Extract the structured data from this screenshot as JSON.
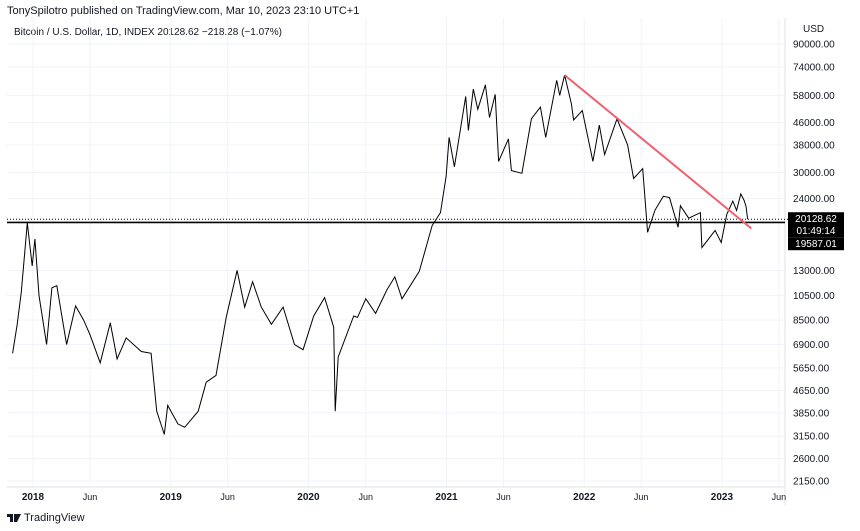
{
  "header": {
    "publisher_line": "TonySpilotro published on TradingView.com, Mar 10, 2023 23:10 UTC+1",
    "symbol_line": "Bitcoin / U.S. Dollar, 1D, INDEX  20128.62  −218.28 (−1.07%)"
  },
  "footer": {
    "brand": "TradingView",
    "logo_icon": "tradingview-logo-icon"
  },
  "colors": {
    "price": "#000000",
    "trendline": "#f0606e",
    "support": "#000000",
    "label_bg": "#000000",
    "grid": "#f0f3fa"
  },
  "chart_data": {
    "type": "line",
    "title": "Bitcoin / U.S. Dollar, 1D, INDEX",
    "y_unit_label": "USD",
    "y_scale": "log",
    "ylim": [
      1950,
      100000
    ],
    "xlim": [
      "2017-11-08",
      "2023-07-20"
    ],
    "grid": true,
    "y_ticks": [
      "90000.00",
      "74000.00",
      "58000.00",
      "46000.00",
      "38000.00",
      "30000.00",
      "24000.00",
      "13000.00",
      "10500.00",
      "8500.00",
      "6900.00",
      "5650.00",
      "4650.00",
      "3850.00",
      "3150.00",
      "2600.00",
      "2150.00"
    ],
    "x_ticks": [
      {
        "label": "2018",
        "date": "2018-01-01",
        "year": true
      },
      {
        "label": "Jun",
        "date": "2018-06-01"
      },
      {
        "label": "2019",
        "date": "2019-01-01",
        "year": true
      },
      {
        "label": "Jun",
        "date": "2019-06-01"
      },
      {
        "label": "2020",
        "date": "2020-01-01",
        "year": true
      },
      {
        "label": "Jun",
        "date": "2020-06-01"
      },
      {
        "label": "2021",
        "date": "2021-01-01",
        "year": true
      },
      {
        "label": "Jun",
        "date": "2021-06-01"
      },
      {
        "label": "2022",
        "date": "2022-01-01",
        "year": true
      },
      {
        "label": "Jun",
        "date": "2022-06-01"
      },
      {
        "label": "2023",
        "date": "2023-01-01",
        "year": true
      },
      {
        "label": "Jun",
        "date": "2023-06-01"
      }
    ],
    "series": [
      {
        "points": [
          [
            "2017-11-08",
            6400
          ],
          [
            "2017-11-20",
            8200
          ],
          [
            "2017-12-01",
            10800
          ],
          [
            "2017-12-17",
            19500
          ],
          [
            "2017-12-30",
            13500
          ],
          [
            "2018-01-06",
            17000
          ],
          [
            "2018-01-17",
            10500
          ],
          [
            "2018-02-06",
            6900
          ],
          [
            "2018-02-20",
            11200
          ],
          [
            "2018-03-05",
            11400
          ],
          [
            "2018-03-31",
            6900
          ],
          [
            "2018-04-24",
            9600
          ],
          [
            "2018-05-15",
            8500
          ],
          [
            "2018-06-01",
            7500
          ],
          [
            "2018-06-28",
            5900
          ],
          [
            "2018-07-25",
            8300
          ],
          [
            "2018-08-12",
            6100
          ],
          [
            "2018-09-05",
            7300
          ],
          [
            "2018-10-15",
            6500
          ],
          [
            "2018-11-10",
            6400
          ],
          [
            "2018-11-25",
            3900
          ],
          [
            "2018-12-15",
            3200
          ],
          [
            "2018-12-24",
            4100
          ],
          [
            "2019-01-20",
            3500
          ],
          [
            "2019-02-07",
            3400
          ],
          [
            "2019-03-15",
            3900
          ],
          [
            "2019-04-05",
            5000
          ],
          [
            "2019-05-01",
            5300
          ],
          [
            "2019-05-28",
            8700
          ],
          [
            "2019-06-26",
            13000
          ],
          [
            "2019-07-16",
            9500
          ],
          [
            "2019-08-06",
            11800
          ],
          [
            "2019-08-29",
            9500
          ],
          [
            "2019-09-25",
            8200
          ],
          [
            "2019-10-26",
            9500
          ],
          [
            "2019-11-25",
            6900
          ],
          [
            "2019-12-18",
            6600
          ],
          [
            "2020-01-15",
            8800
          ],
          [
            "2020-02-13",
            10300
          ],
          [
            "2020-03-08",
            8000
          ],
          [
            "2020-03-12",
            3900
          ],
          [
            "2020-03-20",
            6200
          ],
          [
            "2020-04-30",
            8800
          ],
          [
            "2020-05-10",
            8700
          ],
          [
            "2020-06-01",
            10200
          ],
          [
            "2020-06-27",
            9000
          ],
          [
            "2020-07-27",
            11000
          ],
          [
            "2020-08-17",
            12300
          ],
          [
            "2020-09-05",
            10200
          ],
          [
            "2020-10-21",
            12900
          ],
          [
            "2020-11-24",
            19100
          ],
          [
            "2020-12-16",
            21300
          ],
          [
            "2020-12-31",
            29000
          ],
          [
            "2021-01-08",
            40500
          ],
          [
            "2021-01-22",
            31500
          ],
          [
            "2021-02-21",
            57500
          ],
          [
            "2021-02-28",
            43000
          ],
          [
            "2021-03-13",
            61200
          ],
          [
            "2021-03-25",
            51500
          ],
          [
            "2021-04-14",
            63500
          ],
          [
            "2021-04-25",
            48000
          ],
          [
            "2021-05-10",
            58500
          ],
          [
            "2021-05-19",
            33000
          ],
          [
            "2021-06-14",
            40000
          ],
          [
            "2021-06-22",
            30500
          ],
          [
            "2021-07-20",
            29800
          ],
          [
            "2021-08-14",
            47500
          ],
          [
            "2021-09-07",
            52500
          ],
          [
            "2021-09-21",
            40500
          ],
          [
            "2021-10-20",
            66000
          ],
          [
            "2021-10-28",
            58000
          ],
          [
            "2021-11-10",
            69000
          ],
          [
            "2021-11-28",
            54000
          ],
          [
            "2021-12-04",
            47000
          ],
          [
            "2021-12-27",
            51000
          ],
          [
            "2022-01-10",
            41000
          ],
          [
            "2022-01-24",
            33000
          ],
          [
            "2022-02-10",
            45000
          ],
          [
            "2022-02-24",
            35000
          ],
          [
            "2022-03-29",
            47500
          ],
          [
            "2022-04-26",
            38000
          ],
          [
            "2022-05-12",
            28500
          ],
          [
            "2022-06-05",
            31000
          ],
          [
            "2022-06-18",
            18000
          ],
          [
            "2022-07-08",
            21800
          ],
          [
            "2022-07-30",
            24500
          ],
          [
            "2022-08-15",
            24200
          ],
          [
            "2022-09-07",
            18800
          ],
          [
            "2022-09-13",
            22600
          ],
          [
            "2022-10-05",
            20300
          ],
          [
            "2022-11-05",
            21300
          ],
          [
            "2022-11-09",
            15800
          ],
          [
            "2022-12-14",
            18300
          ],
          [
            "2022-12-30",
            16500
          ],
          [
            "2023-01-14",
            21000
          ],
          [
            "2023-01-30",
            23500
          ],
          [
            "2023-02-09",
            21700
          ],
          [
            "2023-02-20",
            25000
          ],
          [
            "2023-03-01",
            23600
          ],
          [
            "2023-03-06",
            22400
          ],
          [
            "2023-03-10",
            20128.62
          ]
        ]
      }
    ],
    "trendline": {
      "from": [
        "2021-11-10",
        69000
      ],
      "to": [
        "2023-03-20",
        18600
      ]
    },
    "support_line": {
      "value": 19587.01
    },
    "last_price": {
      "value": 20128.62,
      "label": "20128.62",
      "countdown": "01:49:14"
    },
    "support_label": "19587.01"
  }
}
